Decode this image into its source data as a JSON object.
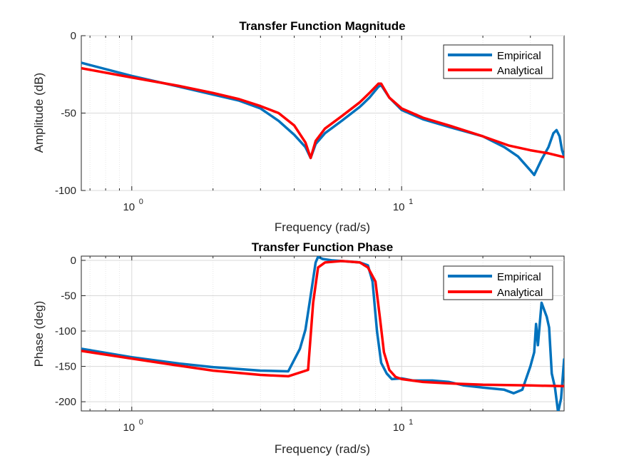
{
  "chart_data": [
    {
      "type": "line",
      "title": "Transfer Function Magnitude",
      "xlabel": "Frequency (rad/s)",
      "ylabel": "Amplitude (dB)",
      "xscale": "log",
      "xlim": [
        0.65,
        40
      ],
      "ylim": [
        -100,
        0
      ],
      "yticks": [
        "0",
        "-50",
        "-100"
      ],
      "xticks": [
        {
          "base": "10",
          "exp": "0",
          "value": 1
        },
        {
          "base": "10",
          "exp": "1",
          "value": 10
        }
      ],
      "grid": true,
      "legend": {
        "position": "top-right",
        "entries": [
          "Empirical",
          "Analytical"
        ]
      },
      "series": [
        {
          "name": "Empirical",
          "color": "#0072BD",
          "points": [
            [
              0.65,
              -17.5
            ],
            [
              1,
              -26
            ],
            [
              1.5,
              -33
            ],
            [
              2,
              -38
            ],
            [
              2.5,
              -42
            ],
            [
              3,
              -47
            ],
            [
              3.5,
              -55
            ],
            [
              4,
              -64
            ],
            [
              4.4,
              -72
            ],
            [
              4.6,
              -79
            ],
            [
              4.8,
              -70
            ],
            [
              5.2,
              -63
            ],
            [
              6,
              -55
            ],
            [
              7,
              -46
            ],
            [
              7.6,
              -40
            ],
            [
              8.2,
              -33
            ],
            [
              8.4,
              -32
            ],
            [
              9,
              -40
            ],
            [
              10,
              -48
            ],
            [
              12,
              -54
            ],
            [
              15,
              -59
            ],
            [
              20,
              -65
            ],
            [
              24,
              -72
            ],
            [
              27,
              -78
            ],
            [
              30,
              -87
            ],
            [
              31,
              -90
            ],
            [
              33,
              -80
            ],
            [
              35,
              -72
            ],
            [
              36.5,
              -63
            ],
            [
              37.5,
              -61
            ],
            [
              38.5,
              -65
            ],
            [
              39.3,
              -74
            ],
            [
              40,
              -78
            ]
          ]
        },
        {
          "name": "Analytical",
          "color": "#FF0000",
          "points": [
            [
              0.65,
              -21
            ],
            [
              1,
              -27
            ],
            [
              1.5,
              -32.5
            ],
            [
              2,
              -37
            ],
            [
              2.5,
              -41
            ],
            [
              3,
              -45.5
            ],
            [
              3.5,
              -50
            ],
            [
              4,
              -58
            ],
            [
              4.4,
              -69
            ],
            [
              4.6,
              -79
            ],
            [
              4.8,
              -68
            ],
            [
              5.2,
              -60
            ],
            [
              6,
              -52
            ],
            [
              7,
              -43
            ],
            [
              7.6,
              -37
            ],
            [
              8.2,
              -31
            ],
            [
              8.4,
              -31
            ],
            [
              9,
              -40
            ],
            [
              10,
              -47
            ],
            [
              12,
              -53
            ],
            [
              15,
              -58
            ],
            [
              20,
              -65
            ],
            [
              25,
              -71
            ],
            [
              30,
              -74
            ],
            [
              35,
              -76
            ],
            [
              40,
              -78.5
            ]
          ]
        }
      ]
    },
    {
      "type": "line",
      "title": "Transfer Function Phase",
      "xlabel": "Frequency (rad/s)",
      "ylabel": "Phase (deg)",
      "xscale": "log",
      "xlim": [
        0.65,
        40
      ],
      "ylim": [
        -213,
        6
      ],
      "yticks": [
        "0",
        "-50",
        "-100",
        "-150",
        "-200"
      ],
      "xticks": [
        {
          "base": "10",
          "exp": "0",
          "value": 1
        },
        {
          "base": "10",
          "exp": "1",
          "value": 10
        }
      ],
      "grid": true,
      "legend": {
        "position": "top-right",
        "entries": [
          "Empirical",
          "Analytical"
        ]
      },
      "series": [
        {
          "name": "Empirical",
          "color": "#0072BD",
          "points": [
            [
              0.65,
              -125
            ],
            [
              1,
              -137
            ],
            [
              1.5,
              -146
            ],
            [
              2,
              -151
            ],
            [
              3,
              -156
            ],
            [
              3.8,
              -157
            ],
            [
              4.2,
              -125
            ],
            [
              4.4,
              -98
            ],
            [
              4.6,
              -50
            ],
            [
              4.8,
              -3
            ],
            [
              4.9,
              5
            ],
            [
              5.1,
              2
            ],
            [
              5.5,
              0
            ],
            [
              6,
              -1
            ],
            [
              6.5,
              -2
            ],
            [
              7,
              -3
            ],
            [
              7.5,
              -7
            ],
            [
              7.8,
              -30
            ],
            [
              8.1,
              -100
            ],
            [
              8.4,
              -145
            ],
            [
              8.8,
              -160
            ],
            [
              9.2,
              -168
            ],
            [
              10,
              -167
            ],
            [
              11,
              -170
            ],
            [
              13,
              -170
            ],
            [
              15,
              -172
            ],
            [
              17,
              -177
            ],
            [
              20,
              -180
            ],
            [
              24,
              -183
            ],
            [
              26,
              -188
            ],
            [
              28,
              -183
            ],
            [
              30,
              -150
            ],
            [
              31,
              -130
            ],
            [
              31.5,
              -90
            ],
            [
              32,
              -120
            ],
            [
              33,
              -60
            ],
            [
              34.5,
              -80
            ],
            [
              35.2,
              -95
            ],
            [
              36,
              -160
            ],
            [
              37,
              -180
            ],
            [
              38,
              -215
            ],
            [
              39,
              -195
            ],
            [
              40,
              -140
            ]
          ]
        },
        {
          "name": "Analytical",
          "color": "#FF0000",
          "points": [
            [
              0.65,
              -128
            ],
            [
              1,
              -139
            ],
            [
              1.5,
              -149
            ],
            [
              2,
              -156
            ],
            [
              3,
              -162
            ],
            [
              3.8,
              -164
            ],
            [
              4.5,
              -155
            ],
            [
              4.7,
              -60
            ],
            [
              4.9,
              -10
            ],
            [
              5.2,
              -3
            ],
            [
              6,
              -1
            ],
            [
              7,
              -3
            ],
            [
              7.5,
              -10
            ],
            [
              8,
              -30
            ],
            [
              8.3,
              -80
            ],
            [
              8.6,
              -130
            ],
            [
              9,
              -155
            ],
            [
              9.5,
              -165
            ],
            [
              10,
              -168
            ],
            [
              12,
              -172
            ],
            [
              15,
              -174
            ],
            [
              20,
              -176
            ],
            [
              30,
              -177
            ],
            [
              40,
              -178
            ]
          ]
        }
      ]
    }
  ]
}
